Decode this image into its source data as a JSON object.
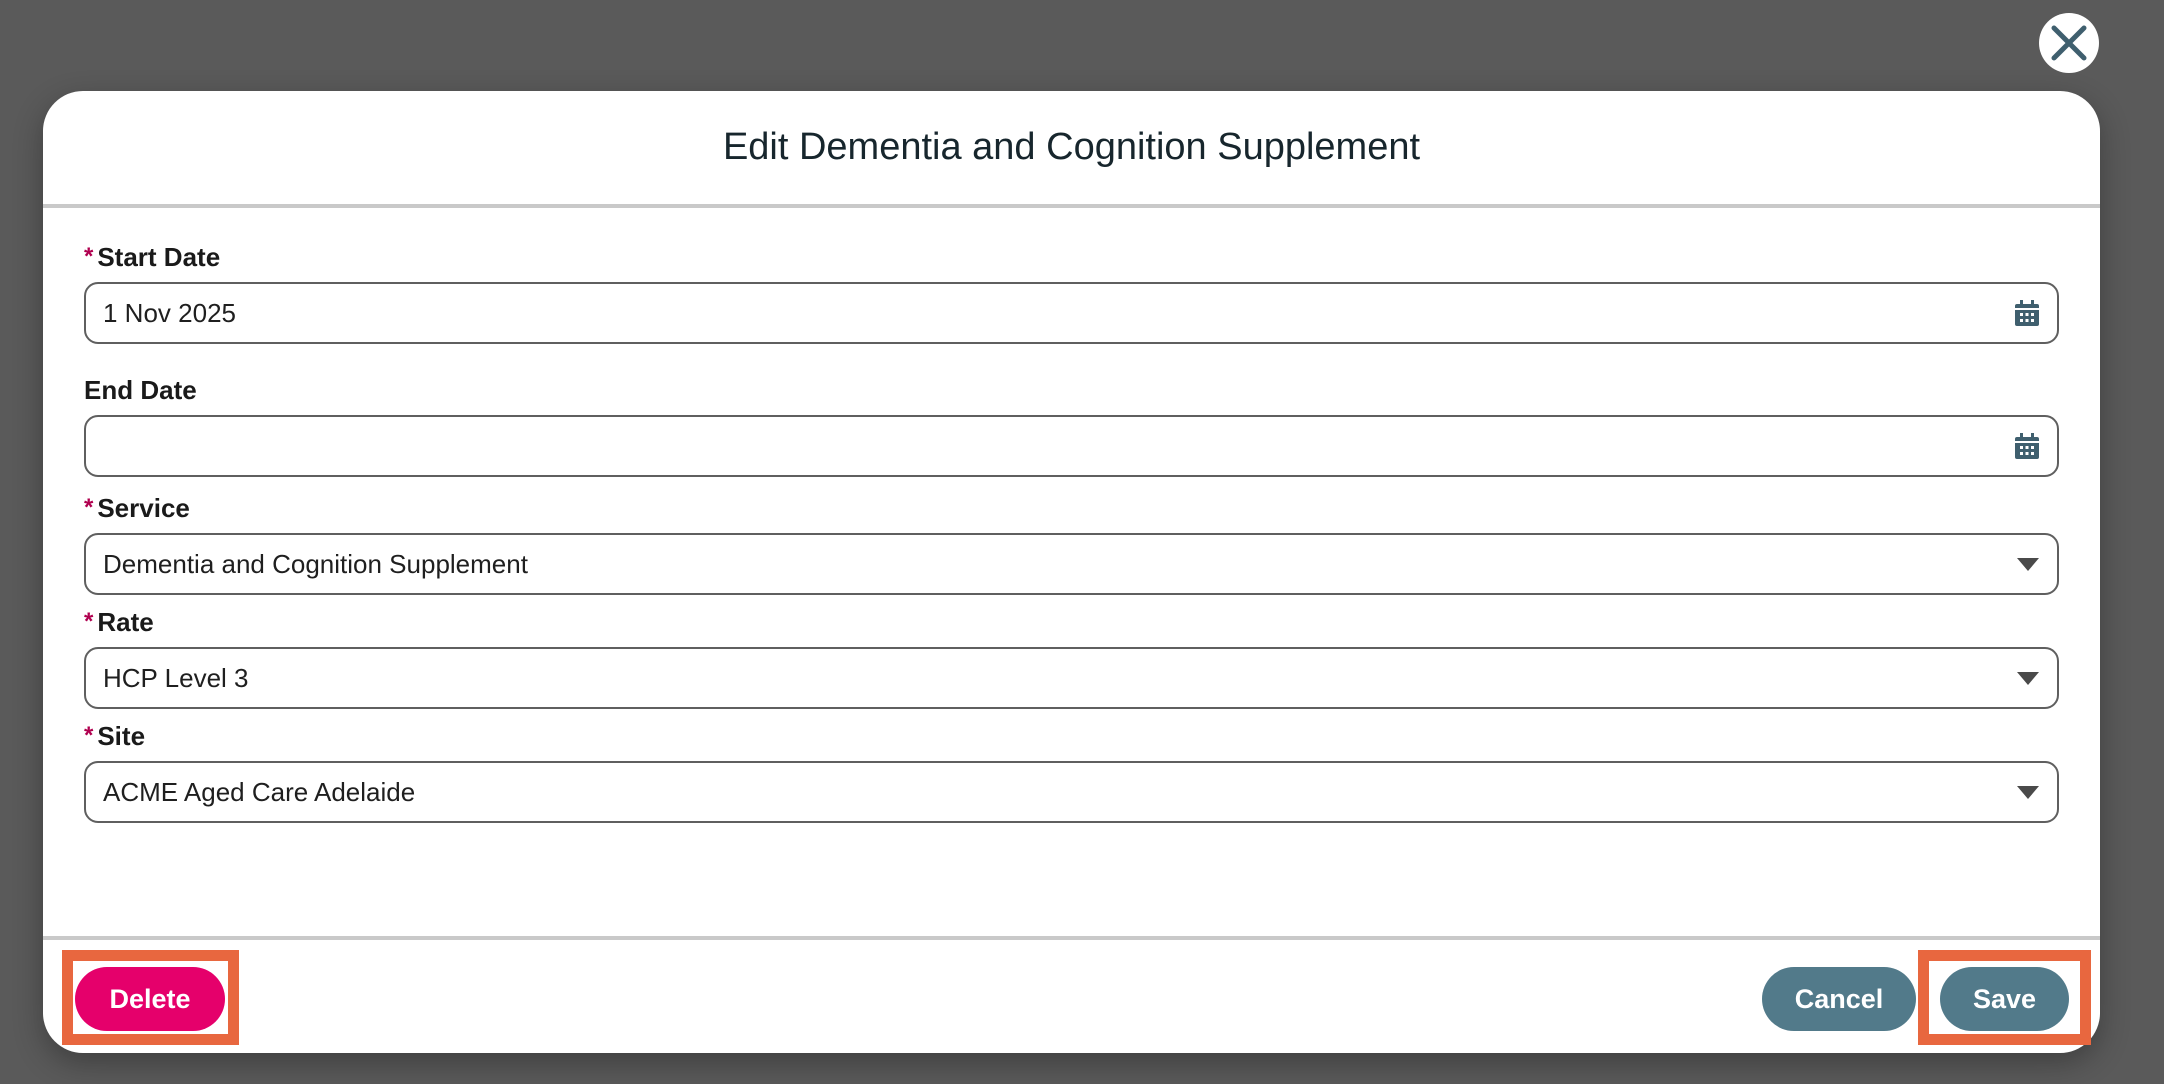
{
  "modal": {
    "title": "Edit Dementia and Cognition Supplement",
    "close_icon": "close-x-icon",
    "fields": [
      {
        "label": "Start Date",
        "required": true,
        "value": "1 Nov 2025",
        "type": "date",
        "icon": "calendar-icon"
      },
      {
        "label": "End Date",
        "required": false,
        "value": "",
        "type": "date",
        "icon": "calendar-icon"
      },
      {
        "label": "Service",
        "required": true,
        "value": "Dementia and Cognition Supplement",
        "type": "select",
        "icon": "dropdown-triangle-icon"
      },
      {
        "label": "Rate",
        "required": true,
        "value": "HCP Level 3",
        "type": "select",
        "icon": "dropdown-triangle-icon"
      },
      {
        "label": "Site",
        "required": true,
        "value": "ACME Aged Care Adelaide",
        "type": "select",
        "icon": "dropdown-triangle-icon"
      }
    ],
    "required_marker": "*",
    "footer": {
      "delete_label": "Delete",
      "cancel_label": "Cancel",
      "save_label": "Save"
    }
  },
  "colors": {
    "accent": "#527a8a",
    "danger": "#e5006b",
    "highlight": "#e8673f",
    "required": "#b0004f",
    "backdrop": "#5a5a5a"
  }
}
